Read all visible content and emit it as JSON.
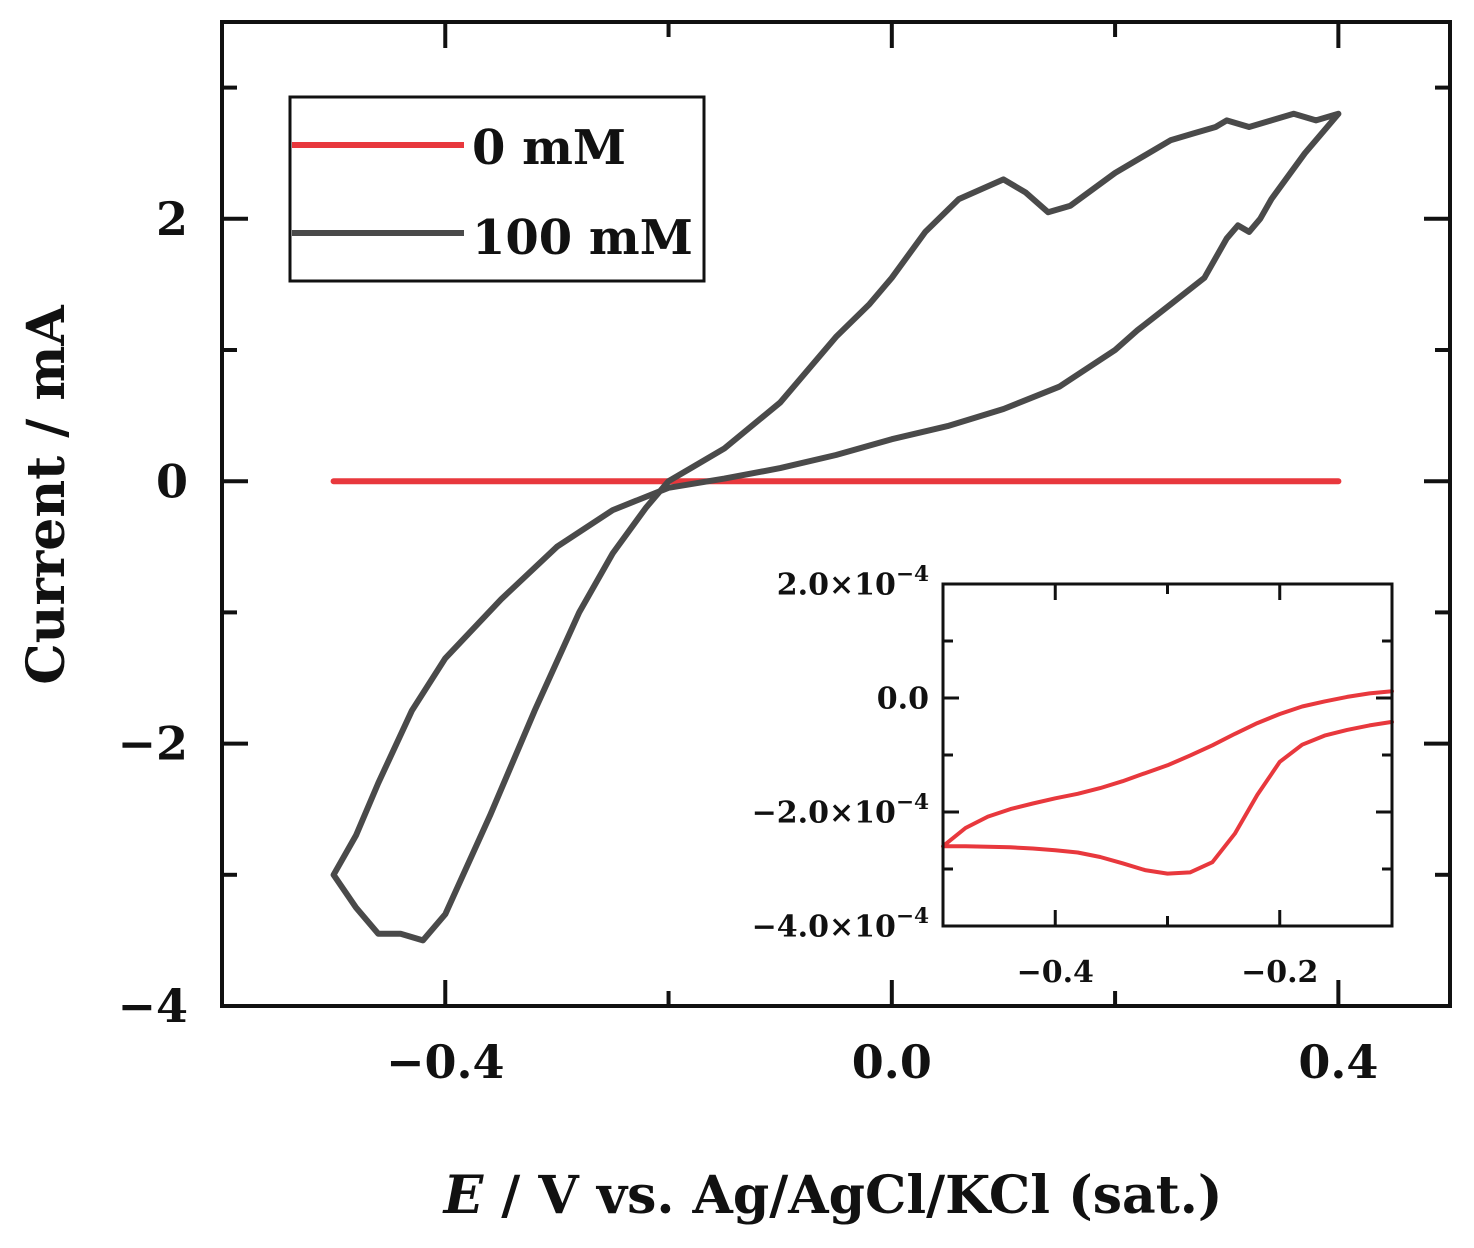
{
  "chart_data": [
    {
      "type": "line",
      "role": "main",
      "title": "",
      "xlabel_italic": "E",
      "xlabel_rest": " / V vs. Ag/AgCl/KCl (sat.)",
      "ylabel": "Current / mA",
      "xlim": [
        -0.6,
        0.5
      ],
      "ylim": [
        -4,
        3.5
      ],
      "xticks": [
        -0.4,
        0.0,
        0.4
      ],
      "xtick_labels": [
        "−0.4",
        "0.0",
        "0.4"
      ],
      "xminor": [
        -0.6,
        -0.2,
        0.2
      ],
      "yticks": [
        -4,
        -2,
        0,
        2
      ],
      "ytick_labels": [
        "−4",
        "−2",
        "0",
        "2"
      ],
      "yminor": [
        -3,
        -1,
        1,
        3
      ],
      "grid": false,
      "legend": {
        "position": "top-left",
        "entries": [
          {
            "label": "0 mM",
            "color": "#e8383d"
          },
          {
            "label": "100 mM",
            "color": "#4a4a4a"
          }
        ]
      },
      "series": [
        {
          "name": "0 mM",
          "color": "#e8383d",
          "x": [
            -0.5,
            0.4
          ],
          "y": [
            0.0,
            0.0
          ]
        },
        {
          "name": "100 mM",
          "color": "#4a4a4a",
          "x": [
            0.4,
            0.37,
            0.34,
            0.33,
            0.32,
            0.31,
            0.3,
            0.28,
            0.25,
            0.22,
            0.2,
            0.15,
            0.1,
            0.05,
            0.0,
            -0.05,
            -0.1,
            -0.15,
            -0.2,
            -0.25,
            -0.3,
            -0.35,
            -0.4,
            -0.43,
            -0.46,
            -0.48,
            -0.5,
            -0.5,
            -0.48,
            -0.46,
            -0.44,
            -0.42,
            -0.4,
            -0.36,
            -0.32,
            -0.28,
            -0.25,
            -0.22,
            -0.2,
            -0.18,
            -0.15,
            -0.1,
            -0.05,
            -0.02,
            0.0,
            0.03,
            0.06,
            0.1,
            0.12,
            0.14,
            0.16,
            0.2,
            0.25,
            0.27,
            0.29,
            0.3,
            0.32,
            0.34,
            0.36,
            0.38,
            0.4
          ],
          "y": [
            2.8,
            2.5,
            2.15,
            2.0,
            1.9,
            1.95,
            1.85,
            1.55,
            1.35,
            1.15,
            1.0,
            0.72,
            0.55,
            0.42,
            0.32,
            0.2,
            0.1,
            0.02,
            -0.05,
            -0.22,
            -0.5,
            -0.9,
            -1.35,
            -1.75,
            -2.3,
            -2.7,
            -3.0,
            -3.0,
            -3.25,
            -3.45,
            -3.45,
            -3.5,
            -3.3,
            -2.55,
            -1.75,
            -1.0,
            -0.55,
            -0.2,
            0.0,
            0.1,
            0.25,
            0.6,
            1.1,
            1.35,
            1.55,
            1.9,
            2.15,
            2.3,
            2.2,
            2.05,
            2.1,
            2.35,
            2.6,
            2.65,
            2.7,
            2.75,
            2.7,
            2.75,
            2.8,
            2.75,
            2.8
          ]
        }
      ]
    },
    {
      "type": "line",
      "role": "inset",
      "position": "bottom-right",
      "xlim": [
        -0.5,
        -0.1
      ],
      "ylim": [
        -0.0004,
        0.0002
      ],
      "xticks": [
        -0.4,
        -0.2
      ],
      "xtick_labels": [
        "−0.4",
        "−0.2"
      ],
      "xminor": [
        -0.5,
        -0.3,
        -0.1
      ],
      "yticks": [
        0.0002,
        0.0,
        -0.0002,
        -0.0004
      ],
      "ytick_labels": [
        {
          "mantissa": "2.0×10",
          "exp": "−4"
        },
        {
          "mantissa": "0.0",
          "exp": ""
        },
        {
          "mantissa": "−2.0×10",
          "exp": "−4"
        },
        {
          "mantissa": "−4.0×10",
          "exp": "−4"
        }
      ],
      "yminor": [
        0.0001,
        -0.0001,
        -0.0003
      ],
      "series": [
        {
          "name": "0 mM",
          "color": "#e8383d",
          "x": [
            -0.1,
            -0.12,
            -0.14,
            -0.16,
            -0.18,
            -0.2,
            -0.22,
            -0.24,
            -0.26,
            -0.28,
            -0.3,
            -0.32,
            -0.34,
            -0.36,
            -0.38,
            -0.4,
            -0.42,
            -0.44,
            -0.46,
            -0.48,
            -0.5,
            -0.5,
            -0.48,
            -0.46,
            -0.44,
            -0.42,
            -0.4,
            -0.38,
            -0.36,
            -0.34,
            -0.32,
            -0.3,
            -0.28,
            -0.26,
            -0.24,
            -0.22,
            -0.2,
            -0.18,
            -0.16,
            -0.14,
            -0.12,
            -0.1
          ],
          "y": [
            -4.2e-05,
            -4.8e-05,
            -5.6e-05,
            -6.6e-05,
            -8.2e-05,
            -0.000112,
            -0.00017,
            -0.000238,
            -0.000288,
            -0.000306,
            -0.000308,
            -0.000302,
            -0.00029,
            -0.000279,
            -0.000271,
            -0.000267,
            -0.000264,
            -0.000262,
            -0.000261,
            -0.00026,
            -0.00026,
            -0.00026,
            -0.000228,
            -0.000208,
            -0.000195,
            -0.000185,
            -0.000176,
            -0.000168,
            -0.000158,
            -0.000146,
            -0.000132,
            -0.000118,
            -0.000101,
            -8.3e-05,
            -6.3e-05,
            -4.4e-05,
            -2.8e-05,
            -1.5e-05,
            -6e-06,
            2e-06,
            8e-06,
            1.2e-05
          ]
        }
      ]
    }
  ]
}
